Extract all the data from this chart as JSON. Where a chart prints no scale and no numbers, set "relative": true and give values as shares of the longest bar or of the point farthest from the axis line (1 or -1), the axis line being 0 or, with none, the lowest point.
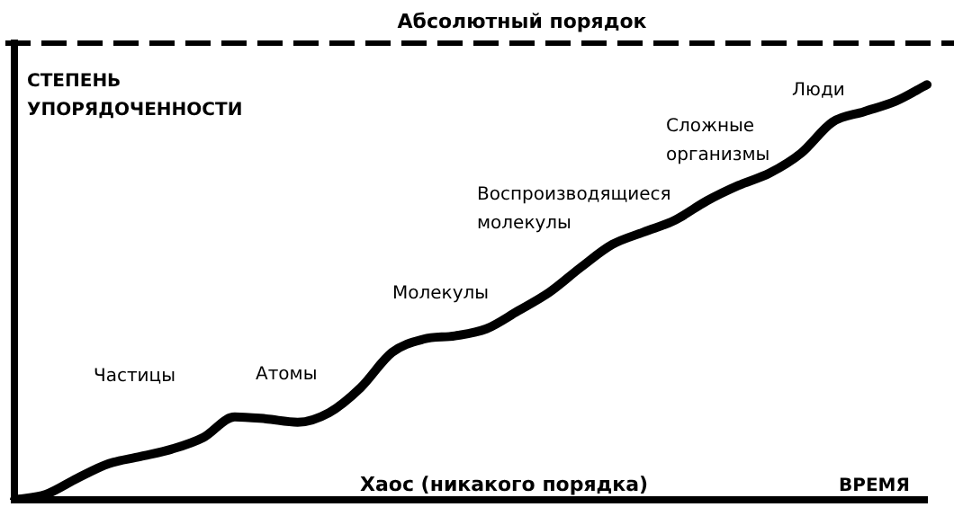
{
  "chart_data": {
    "type": "line",
    "relative": true,
    "ylabel": "СТЕПЕНЬ УПОРЯДОЧЕННОСТИ",
    "xlabel": "ВРЕМЯ",
    "categories": [
      null,
      null,
      null,
      null,
      null,
      null,
      null,
      null,
      null,
      null,
      null,
      null,
      null,
      null,
      null,
      null,
      null,
      null,
      null,
      null,
      null,
      null,
      null,
      null,
      null,
      null,
      null,
      null,
      null,
      null
    ],
    "series": [
      {
        "color": "#000000",
        "values": [
          0,
          0.013,
          0.052,
          0.087,
          0.104,
          0.122,
          0.15,
          0.2,
          0.195,
          0.187,
          0.21,
          0.27,
          0.355,
          0.387,
          0.395,
          0.412,
          0.455,
          0.5,
          0.56,
          0.615,
          0.645,
          0.674,
          0.72,
          0.757,
          0.787,
          0.835,
          0.91,
          0.935,
          0.96,
          1
        ]
      }
    ],
    "ref_lines": [
      {
        "axis": "y",
        "value": 1.1,
        "label": "Абсолютный порядок",
        "line_style": "dashed"
      }
    ],
    "annotations": [
      "Частицы",
      "Атомы",
      "Молекулы",
      "Воспроизводящиеся молекулы",
      "Сложные организмы",
      "Люди",
      "Хаос (никакого порядка)"
    ],
    "legend": false,
    "marker": "none",
    "line_style": "solid"
  }
}
